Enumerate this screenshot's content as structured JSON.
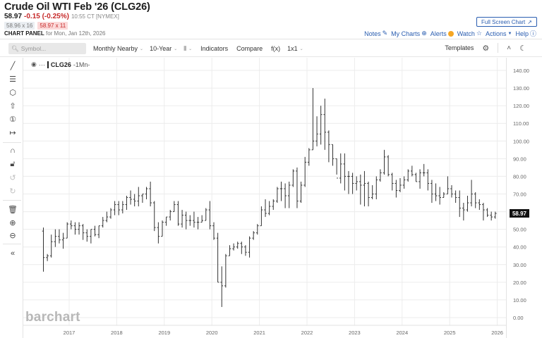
{
  "header": {
    "title": "Crude Oil WTI Feb '26 (CLG26)",
    "last": "58.97",
    "change": "-0.15 (-0.25%)",
    "time": "10:55 CT [NYMEX]",
    "bid": "58.96 x 16",
    "ask": "58.97 x 11",
    "panel_label": "CHART PANEL",
    "panel_date": "for Mon, Jan 12th, 2026"
  },
  "top_links": {
    "fullscreen": "Full Screen Chart",
    "notes": "Notes",
    "my_charts": "My Charts",
    "alerts": "Alerts",
    "watch": "Watch",
    "actions": "Actions",
    "help": "Help"
  },
  "toolbar": {
    "search_placeholder": "Symbol...",
    "aggregation": "Monthly Nearby",
    "period": "10-Year",
    "chart_type_icon": "bar-chart-icon",
    "indicators": "Indicators",
    "compare": "Compare",
    "fx": "f(x)",
    "layout": "1x1",
    "templates": "Templates"
  },
  "sidebar": {
    "tools": [
      "trendline-icon",
      "fib-icon",
      "shape-icon",
      "arrow-icon",
      "numbered-marker-icon",
      "measure-icon",
      "magnet-icon",
      "lock-icon",
      "undo-icon",
      "redo-icon",
      "trash-icon",
      "zoom-in-icon",
      "zoom-out-icon",
      "collapse-icon"
    ]
  },
  "legend": {
    "symbol": "CLG26",
    "interval": "-1Mn-"
  },
  "watermark": "barchart",
  "colors": {
    "accent": "#2a5db0",
    "down": "#c62828",
    "bars": "#333333",
    "grid": "#ececec",
    "alert": "#f5a623"
  },
  "chart_data": {
    "type": "ohlc",
    "title": "Crude Oil WTI Feb '26 (CLG26) - Monthly Nearby, 10-Year",
    "xlabel": "",
    "ylabel": "",
    "ylim": [
      0,
      140
    ],
    "y_ticks": [
      "0.00",
      "10.00",
      "20.00",
      "30.00",
      "40.00",
      "50.00",
      "60.00",
      "70.00",
      "80.00",
      "90.00",
      "100.00",
      "110.00",
      "120.00",
      "130.00",
      "140.00"
    ],
    "x_ticks": [
      "2017",
      "2018",
      "2019",
      "2020",
      "2021",
      "2022",
      "2023",
      "2024",
      "2025",
      "2026"
    ],
    "last_price_label": "58.97",
    "grid": true,
    "start": "2016-06",
    "bars": [
      [
        49,
        51,
        26,
        34
      ],
      [
        34,
        36,
        32,
        35
      ],
      [
        35,
        47,
        34,
        43
      ],
      [
        43,
        50,
        40,
        46
      ],
      [
        46,
        50,
        42,
        44
      ],
      [
        44,
        48,
        39,
        45
      ],
      [
        45,
        54,
        45,
        53
      ],
      [
        53,
        55,
        50,
        52
      ],
      [
        52,
        54,
        47,
        50
      ],
      [
        50,
        54,
        47,
        52
      ],
      [
        52,
        53,
        44,
        48
      ],
      [
        48,
        50,
        43,
        46
      ],
      [
        46,
        50,
        42,
        50
      ],
      [
        50,
        52,
        46,
        47
      ],
      [
        47,
        52,
        45,
        52
      ],
      [
        52,
        57,
        51,
        55
      ],
      [
        55,
        60,
        54,
        57
      ],
      [
        57,
        62,
        56,
        61
      ],
      [
        61,
        66,
        58,
        64
      ],
      [
        64,
        66,
        58,
        61
      ],
      [
        61,
        66,
        59,
        64
      ],
      [
        64,
        69,
        61,
        68
      ],
      [
        68,
        72,
        64,
        67
      ],
      [
        67,
        70,
        63,
        66
      ],
      [
        66,
        74,
        63,
        69
      ],
      [
        69,
        70,
        65,
        70
      ],
      [
        70,
        74,
        67,
        73
      ],
      [
        73,
        77,
        63,
        65
      ],
      [
        65,
        66,
        49,
        51
      ],
      [
        51,
        54,
        42,
        46
      ],
      [
        46,
        55,
        46,
        54
      ],
      [
        54,
        57,
        52,
        57
      ],
      [
        57,
        61,
        55,
        60
      ],
      [
        60,
        66,
        60,
        64
      ],
      [
        64,
        66,
        52,
        53
      ],
      [
        53,
        61,
        51,
        58
      ],
      [
        58,
        60,
        50,
        55
      ],
      [
        55,
        58,
        52,
        55
      ],
      [
        55,
        60,
        51,
        54
      ],
      [
        54,
        57,
        50,
        54
      ],
      [
        54,
        58,
        54,
        55
      ],
      [
        55,
        62,
        55,
        61
      ],
      [
        61,
        66,
        50,
        52
      ],
      [
        52,
        54,
        44,
        45
      ],
      [
        45,
        48,
        20,
        20
      ],
      [
        20,
        29,
        6,
        18
      ],
      [
        18,
        36,
        17,
        35
      ],
      [
        35,
        41,
        35,
        39
      ],
      [
        39,
        42,
        38,
        40
      ],
      [
        40,
        43,
        39,
        42
      ],
      [
        42,
        43,
        36,
        40
      ],
      [
        40,
        41,
        35,
        37
      ],
      [
        37,
        46,
        34,
        45
      ],
      [
        45,
        49,
        44,
        48
      ],
      [
        48,
        53,
        47,
        52
      ],
      [
        52,
        63,
        52,
        61
      ],
      [
        61,
        67,
        57,
        59
      ],
      [
        59,
        66,
        58,
        63
      ],
      [
        63,
        67,
        61,
        66
      ],
      [
        66,
        74,
        65,
        73
      ],
      [
        73,
        77,
        66,
        73
      ],
      [
        73,
        76,
        62,
        69
      ],
      [
        69,
        77,
        62,
        75
      ],
      [
        75,
        84,
        74,
        83
      ],
      [
        83,
        85,
        62,
        66
      ],
      [
        66,
        77,
        65,
        75
      ],
      [
        75,
        91,
        74,
        88
      ],
      [
        88,
        96,
        86,
        95
      ],
      [
        95,
        130,
        95,
        100
      ],
      [
        100,
        114,
        97,
        104
      ],
      [
        104,
        120,
        98,
        115
      ],
      [
        115,
        124,
        95,
        105
      ],
      [
        105,
        106,
        88,
        98
      ],
      [
        98,
        98,
        86,
        90
      ],
      [
        90,
        90,
        81,
        79
      ],
      [
        79,
        93,
        76,
        87
      ],
      [
        87,
        93,
        72,
        80
      ],
      [
        80,
        83,
        70,
        80
      ],
      [
        80,
        82,
        70,
        76
      ],
      [
        76,
        80,
        72,
        77
      ],
      [
        77,
        81,
        64,
        75
      ],
      [
        75,
        83,
        63,
        76
      ],
      [
        76,
        77,
        63,
        68
      ],
      [
        68,
        75,
        67,
        70
      ],
      [
        70,
        80,
        67,
        78
      ],
      [
        78,
        84,
        77,
        82
      ],
      [
        82,
        95,
        81,
        91
      ],
      [
        91,
        92,
        80,
        81
      ],
      [
        81,
        82,
        72,
        76
      ],
      [
        76,
        78,
        68,
        72
      ],
      [
        72,
        79,
        71,
        75
      ],
      [
        75,
        80,
        73,
        78
      ],
      [
        78,
        84,
        77,
        83
      ],
      [
        83,
        86,
        80,
        81
      ],
      [
        81,
        82,
        77,
        77
      ],
      [
        77,
        84,
        73,
        82
      ],
      [
        82,
        87,
        80,
        82
      ],
      [
        82,
        84,
        72,
        76
      ],
      [
        76,
        78,
        65,
        70
      ],
      [
        70,
        76,
        66,
        69
      ],
      [
        69,
        74,
        64,
        68
      ],
      [
        68,
        71,
        68,
        70
      ],
      [
        70,
        80,
        70,
        73
      ],
      [
        73,
        75,
        68,
        70
      ],
      [
        70,
        72,
        65,
        68
      ],
      [
        68,
        72,
        57,
        62
      ],
      [
        62,
        65,
        55,
        61
      ],
      [
        61,
        69,
        60,
        65
      ],
      [
        65,
        78,
        63,
        70
      ],
      [
        70,
        71,
        62,
        65
      ],
      [
        65,
        67,
        61,
        64
      ],
      [
        64,
        65,
        55,
        61
      ],
      [
        61,
        62,
        57,
        58
      ],
      [
        58,
        60,
        55,
        57
      ],
      [
        57,
        60,
        56,
        59
      ]
    ]
  }
}
